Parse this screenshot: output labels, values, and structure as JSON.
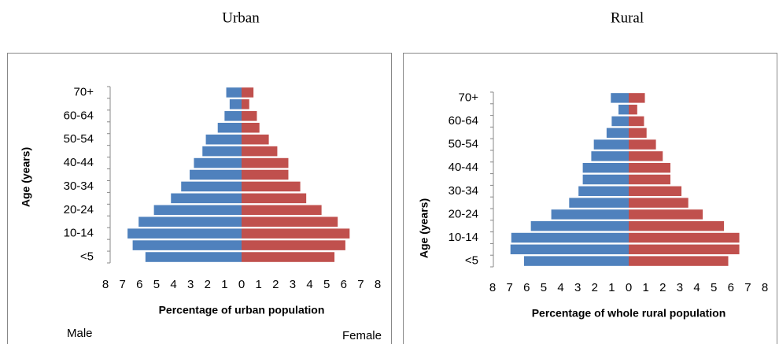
{
  "chart_data": [
    {
      "type": "pyramid",
      "title": "Urban",
      "categories": [
        "<5",
        null,
        "10-14",
        null,
        "20-24",
        null,
        "30-34",
        null,
        "40-44",
        null,
        "50-54",
        null,
        "60-64",
        null,
        "70+"
      ],
      "series": [
        {
          "name": "Male",
          "color": "#4f81bd",
          "values": [
            -5.65,
            -6.4,
            -6.7,
            -6.05,
            -5.15,
            -4.15,
            -3.55,
            -3.05,
            -2.8,
            -2.3,
            -2.1,
            -1.4,
            -1.0,
            -0.7,
            -0.9
          ]
        },
        {
          "name": "Female",
          "color": "#c0504d",
          "values": [
            5.46,
            6.1,
            6.35,
            5.65,
            4.7,
            3.8,
            3.45,
            2.75,
            2.75,
            2.1,
            1.6,
            1.05,
            0.9,
            0.45,
            0.7
          ]
        }
      ],
      "xlabel": "Percentage of urban population",
      "ylabel": "Age (years)",
      "xlim": [
        -8,
        8
      ],
      "xticks": [
        {
          "value": -8,
          "label": "8"
        },
        {
          "value": -7,
          "label": "7"
        },
        {
          "value": -6,
          "label": "6"
        },
        {
          "value": -5,
          "label": "5"
        },
        {
          "value": -4,
          "label": "4"
        },
        {
          "value": -3,
          "label": "3"
        },
        {
          "value": -2,
          "label": "2"
        },
        {
          "value": -1,
          "label": "1"
        },
        0,
        1,
        2,
        3,
        4,
        5,
        6,
        7,
        8
      ],
      "negative_tick_color": "#ff0000"
    },
    {
      "type": "pyramid",
      "title": "Rural",
      "categories": [
        "<5",
        null,
        "10-14",
        null,
        "20-24",
        null,
        "30-34",
        null,
        "40-44",
        null,
        "50-54",
        null,
        "60-64",
        null,
        "70+"
      ],
      "series": [
        {
          "color": "#4f81bd",
          "values": [
            -6.15,
            -6.95,
            -6.9,
            -5.75,
            -4.55,
            -3.5,
            -2.95,
            -2.7,
            -2.7,
            -2.2,
            -2.05,
            -1.3,
            -1.0,
            -0.6,
            -1.05
          ]
        },
        {
          "color": "#c0504d",
          "values": [
            5.85,
            6.5,
            6.5,
            5.6,
            4.35,
            3.5,
            3.1,
            2.45,
            2.45,
            2.0,
            1.6,
            1.05,
            0.9,
            0.5,
            0.95
          ]
        }
      ],
      "xlabel": "Percentage of whole rural population",
      "ylabel": "Age (years)",
      "xlim": [
        -8,
        8
      ],
      "xticks": [
        {
          "value": -8,
          "label": "8"
        },
        {
          "value": -7,
          "label": "7"
        },
        {
          "value": -6,
          "label": "6"
        },
        {
          "value": -5,
          "label": "5"
        },
        {
          "value": -4,
          "label": "4"
        },
        {
          "value": -3,
          "label": "3"
        },
        {
          "value": -2,
          "label": "2"
        },
        {
          "value": -1,
          "label": "1"
        },
        0,
        1,
        2,
        3,
        4,
        5,
        6,
        7,
        8
      ],
      "negative_tick_color": "#ff0000"
    }
  ]
}
